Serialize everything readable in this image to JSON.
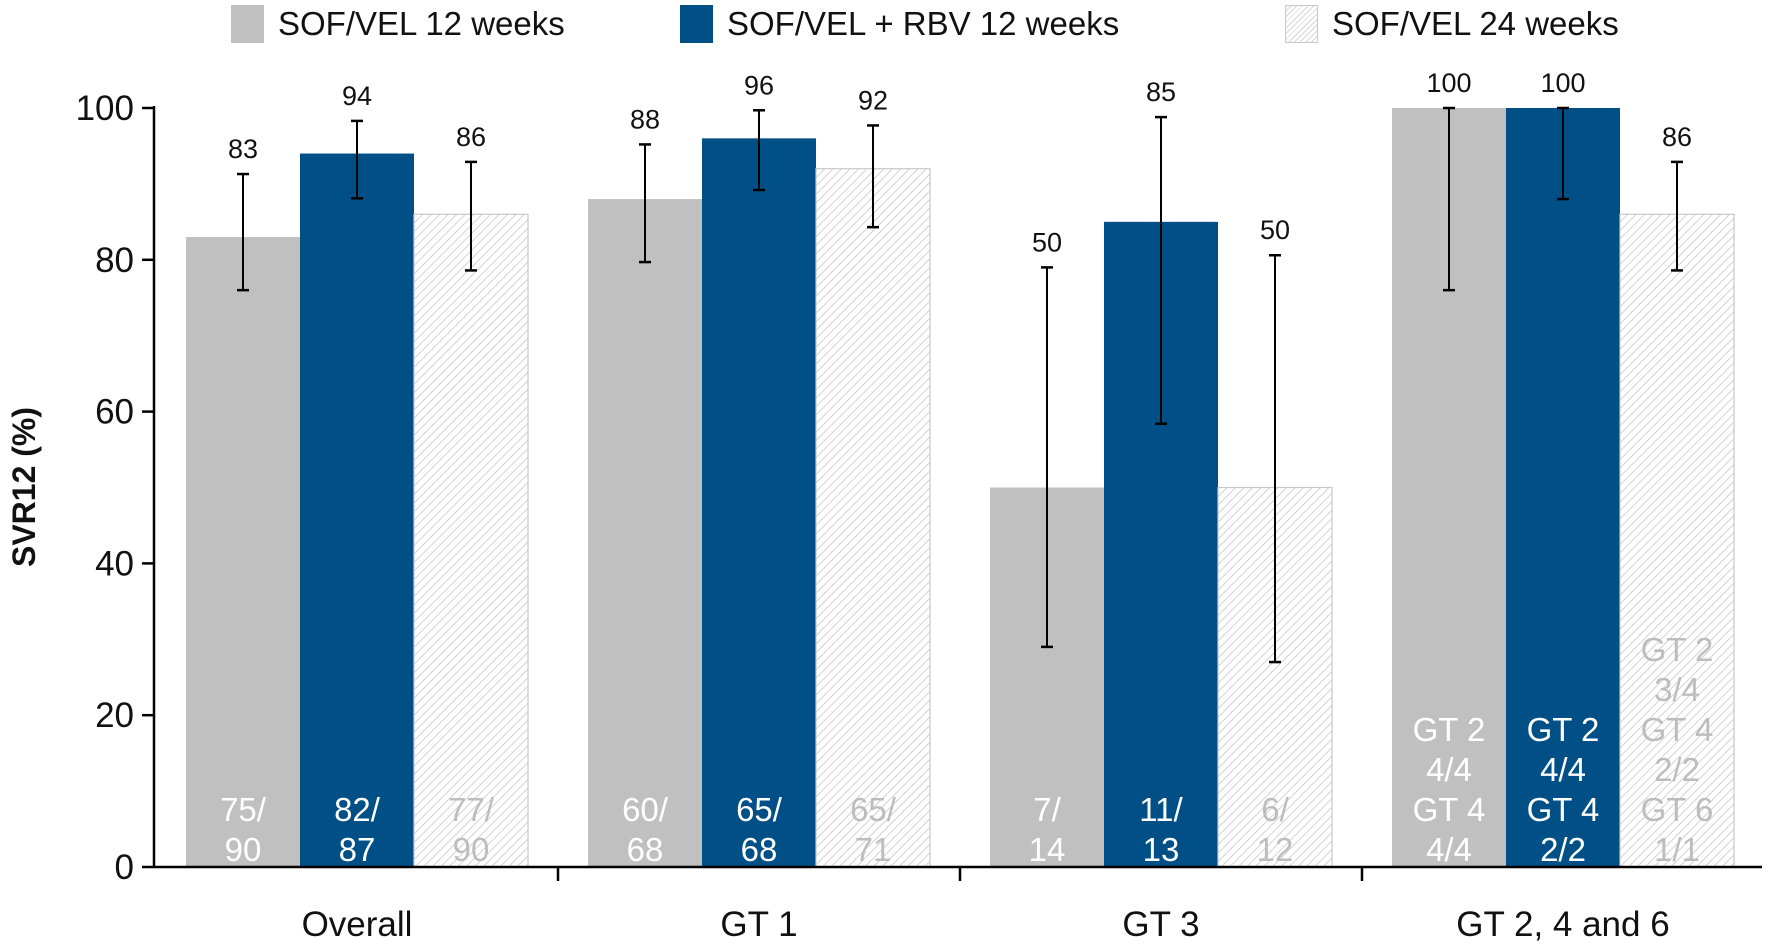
{
  "chart_data": {
    "type": "bar",
    "ylabel": "SVR12 (%)",
    "ylim": [
      0,
      100
    ],
    "yticks": [
      0,
      20,
      40,
      60,
      80,
      100
    ],
    "categories": [
      "Overall",
      "GT 1",
      "GT 3",
      "GT 2, 4 and 6"
    ],
    "legend_position": "top",
    "grid": false,
    "series": [
      {
        "name": "SOF/VEL 12 weeks",
        "color": "#c0c0c0",
        "pattern": "solid",
        "inner_text_color": "#ffffff",
        "values": [
          83,
          88,
          50,
          100
        ],
        "error_low": [
          76,
          79.7,
          29,
          76
        ],
        "error_high": [
          91.3,
          95.2,
          79,
          100
        ],
        "value_labels": [
          "83",
          "88",
          "50",
          "100"
        ],
        "inner_labels": [
          [
            "75/",
            "90"
          ],
          [
            "60/",
            "68"
          ],
          [
            "7/",
            "14"
          ],
          [
            "GT 2",
            "4/4",
            "GT 4",
            "4/4"
          ]
        ]
      },
      {
        "name": "SOF/VEL + RBV 12 weeks",
        "color": "#004f87",
        "pattern": "solid",
        "inner_text_color": "#ffffff",
        "values": [
          94,
          96,
          85,
          100
        ],
        "error_low": [
          88.1,
          89.2,
          58.4,
          88
        ],
        "error_high": [
          98.3,
          99.7,
          98.8,
          100
        ],
        "value_labels": [
          "94",
          "96",
          "85",
          "100"
        ],
        "inner_labels": [
          [
            "82/",
            "87"
          ],
          [
            "65/",
            "68"
          ],
          [
            "11/",
            "13"
          ],
          [
            "GT 2",
            "4/4",
            "GT 4",
            "2/2"
          ]
        ]
      },
      {
        "name": "SOF/VEL 24 weeks",
        "color": "#d6d6d6",
        "pattern": "hatched",
        "inner_text_color": "#bdbdbd",
        "values": [
          86,
          92,
          50,
          86
        ],
        "error_low": [
          78.6,
          84.3,
          27,
          78.6
        ],
        "error_high": [
          92.9,
          97.7,
          80.6,
          92.9
        ],
        "value_labels": [
          "86",
          "92",
          "50",
          "86"
        ],
        "inner_labels": [
          [
            "77/",
            "90"
          ],
          [
            "65/",
            "71"
          ],
          [
            "6/",
            "12"
          ],
          [
            "GT 2",
            "3/4",
            "GT 4",
            "2/2",
            "GT 6",
            "1/1"
          ]
        ]
      }
    ]
  }
}
